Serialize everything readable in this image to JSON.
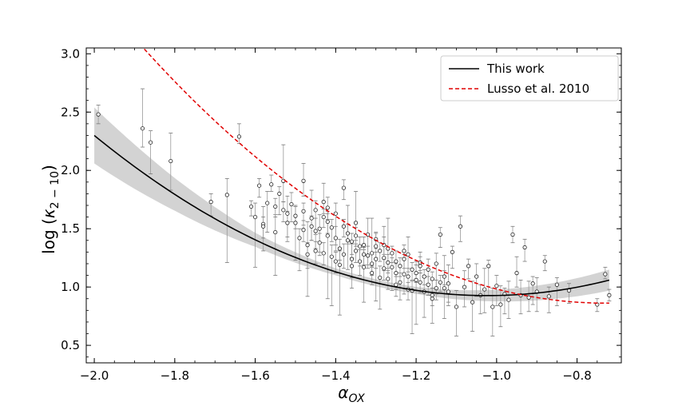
{
  "chart_data": {
    "type": "scatter",
    "title": "",
    "xlabel": "αOX",
    "ylabel": "log (κ2 − 10)",
    "xlabel_parts": {
      "main": "α",
      "sub": "OX"
    },
    "ylabel_parts": {
      "prefix": "log (",
      "kappa": "κ",
      "sub": "2 − 10",
      "suffix": ")"
    },
    "xlim": [
      -2.02,
      -0.69
    ],
    "ylim": [
      0.35,
      3.05
    ],
    "xticks": [
      -2.0,
      -1.8,
      -1.6,
      -1.4,
      -1.2,
      -1.0,
      -0.8
    ],
    "xtick_labels": [
      "−2.0",
      "−1.8",
      "−1.6",
      "−1.4",
      "−1.2",
      "−1.0",
      "−0.8"
    ],
    "yticks": [
      0.5,
      1.0,
      1.5,
      2.0,
      2.5,
      3.0
    ],
    "ytick_labels": [
      "0.5",
      "1.0",
      "1.5",
      "2.0",
      "2.5",
      "3.0"
    ],
    "grid": false,
    "legend": {
      "position": "top-right",
      "entries": [
        {
          "label": "This work",
          "color": "#000000",
          "style": "solid"
        },
        {
          "label": "Lusso et al. 2010",
          "color": "#e00000",
          "style": "dashed"
        }
      ]
    },
    "this_work": {
      "name": "This work",
      "color": "#000000",
      "fit": {
        "type": "quadratic",
        "a": 0.97,
        "b": 0.5,
        "c": 1.44,
        "x0": -0.85
      },
      "band_halfwidth": [
        {
          "x": -2.0,
          "w": 0.24
        },
        {
          "x": -1.8,
          "w": 0.14
        },
        {
          "x": -1.6,
          "w": 0.06
        },
        {
          "x": -1.4,
          "w": 0.03
        },
        {
          "x": -1.2,
          "w": 0.03
        },
        {
          "x": -1.0,
          "w": 0.05
        },
        {
          "x": -0.85,
          "w": 0.07
        },
        {
          "x": -0.72,
          "w": 0.09
        }
      ]
    },
    "lusso_2010": {
      "name": "Lusso et al. 2010",
      "color": "#e00000",
      "fit": {
        "type": "quadratic",
        "a": 0.862,
        "b": 0.0,
        "c": 1.66,
        "x0": -0.73
      }
    },
    "band_color": "#d3d3d3",
    "points": [
      [
        -1.99,
        2.48,
        0.08,
        0.08
      ],
      [
        -1.88,
        2.36,
        0.34,
        0.16
      ],
      [
        -1.86,
        2.24,
        0.1,
        0.27
      ],
      [
        -1.81,
        2.08,
        0.24,
        0.25
      ],
      [
        -1.71,
        1.73,
        0.07,
        0.12
      ],
      [
        -1.67,
        1.79,
        0.14,
        0.58
      ],
      [
        -1.64,
        2.29,
        0.11,
        0.06
      ],
      [
        -1.61,
        1.69,
        0.05,
        0.08
      ],
      [
        -1.6,
        1.6,
        0.12,
        0.43
      ],
      [
        -1.59,
        1.87,
        0.06,
        0.1
      ],
      [
        -1.58,
        1.54,
        0.15,
        0.23
      ],
      [
        -1.57,
        1.72,
        0.1,
        0.25
      ],
      [
        -1.56,
        1.88,
        0.08,
        0.06
      ],
      [
        -1.55,
        1.47,
        0.15,
        0.37
      ],
      [
        -1.54,
        1.8,
        0.06,
        0.18
      ],
      [
        -1.53,
        1.91,
        0.31,
        0.18
      ],
      [
        -1.52,
        1.63,
        0.15,
        0.24
      ],
      [
        -1.51,
        1.71,
        0.1,
        0.15
      ],
      [
        -1.5,
        1.55,
        0.14,
        0.32
      ],
      [
        -1.49,
        1.42,
        0.08,
        0.28
      ],
      [
        -1.48,
        1.91,
        0.15,
        0.13
      ],
      [
        -1.47,
        1.36,
        0.2,
        0.44
      ],
      [
        -1.46,
        1.59,
        0.24,
        0.19
      ],
      [
        -1.45,
        1.66,
        0.08,
        0.21
      ],
      [
        -1.44,
        1.5,
        0.12,
        0.2
      ],
      [
        -1.43,
        1.73,
        0.16,
        0.1
      ],
      [
        -1.42,
        1.44,
        0.21,
        0.54
      ],
      [
        -1.41,
        1.26,
        0.1,
        0.42
      ],
      [
        -1.4,
        1.63,
        0.09,
        0.27
      ],
      [
        -1.39,
        1.19,
        0.12,
        0.43
      ],
      [
        -1.38,
        1.85,
        0.07,
        0.1
      ],
      [
        -1.37,
        1.4,
        0.3,
        0.25
      ],
      [
        -1.36,
        1.24,
        0.13,
        0.25
      ],
      [
        -1.35,
        1.55,
        0.27,
        0.15
      ],
      [
        -1.34,
        1.35,
        0.08,
        0.17
      ],
      [
        -1.33,
        1.17,
        0.15,
        0.3
      ],
      [
        -1.32,
        1.45,
        0.14,
        0.26
      ],
      [
        -1.31,
        1.29,
        0.3,
        0.12
      ],
      [
        -1.3,
        1.35,
        0.11,
        0.47
      ],
      [
        -1.29,
        1.08,
        0.1,
        0.27
      ],
      [
        -1.28,
        1.25,
        0.27,
        0.11
      ],
      [
        -1.27,
        1.33,
        0.26,
        0.17
      ],
      [
        -1.26,
        1.17,
        0.08,
        0.2
      ],
      [
        -1.25,
        1.22,
        0.09,
        0.24
      ],
      [
        -1.24,
        1.04,
        0.08,
        0.15
      ],
      [
        -1.23,
        1.11,
        0.17,
        0.17
      ],
      [
        -1.22,
        1.28,
        0.15,
        0.15
      ],
      [
        -1.21,
        0.97,
        0.08,
        0.37
      ],
      [
        -1.2,
        1.06,
        0.16,
        0.38
      ],
      [
        -1.19,
        1.18,
        0.12,
        0.06
      ],
      [
        -1.18,
        0.96,
        0.12,
        0.22
      ],
      [
        -1.17,
        1.15,
        0.09,
        0.12
      ],
      [
        -1.16,
        0.9,
        0.16,
        0.21
      ],
      [
        -1.15,
        1.2,
        0.09,
        0.26
      ],
      [
        -1.14,
        1.45,
        0.06,
        0.11
      ],
      [
        -1.13,
        0.99,
        0.28,
        0.26
      ],
      [
        -1.12,
        1.03,
        0.16,
        0.19
      ],
      [
        -1.11,
        1.3,
        0.05,
        0.14
      ],
      [
        -1.1,
        0.83,
        0.14,
        0.25
      ],
      [
        -1.09,
        1.52,
        0.09,
        0.13
      ],
      [
        -1.08,
        1.0,
        0.14,
        0.17
      ],
      [
        -1.07,
        1.18,
        0.06,
        0.11
      ],
      [
        -1.06,
        0.87,
        0.18,
        0.25
      ],
      [
        -1.05,
        1.09,
        0.11,
        0.17
      ],
      [
        -1.04,
        0.93,
        0.09,
        0.16
      ],
      [
        -1.03,
        0.98,
        0.18,
        0.2
      ],
      [
        -1.02,
        1.18,
        0.05,
        0.25
      ],
      [
        -1.01,
        0.83,
        0.16,
        0.25
      ],
      [
        -1.0,
        1.01,
        0.09,
        0.17
      ],
      [
        -0.99,
        0.85,
        0.16,
        0.19
      ],
      [
        -0.98,
        0.94,
        0.05,
        0.17
      ],
      [
        -0.97,
        0.89,
        0.16,
        0.16
      ],
      [
        -0.96,
        1.45,
        0.07,
        0.07
      ],
      [
        -0.95,
        1.12,
        0.14,
        0.12
      ],
      [
        -0.94,
        0.93,
        0.13,
        0.16
      ],
      [
        -0.93,
        1.34,
        0.07,
        0.12
      ],
      [
        -0.92,
        0.91,
        0.14,
        0.12
      ],
      [
        -0.91,
        1.03,
        0.06,
        0.18
      ],
      [
        -0.9,
        0.96,
        0.12,
        0.17
      ],
      [
        -0.88,
        1.22,
        0.05,
        0.08
      ],
      [
        -0.87,
        0.92,
        0.08,
        0.14
      ],
      [
        -0.85,
        1.02,
        0.06,
        0.18
      ],
      [
        -0.82,
        0.97,
        0.06,
        0.11
      ],
      [
        -0.75,
        0.85,
        0.05,
        0.06
      ],
      [
        -0.73,
        1.11,
        0.06,
        0.04
      ],
      [
        -0.72,
        0.93,
        0.05,
        0.05
      ],
      [
        -1.58,
        1.52,
        0.08,
        0.1
      ],
      [
        -1.55,
        1.69,
        0.07,
        0.09
      ],
      [
        -1.52,
        1.55,
        0.1,
        0.12
      ],
      [
        -1.5,
        1.61,
        0.09,
        0.11
      ],
      [
        -1.48,
        1.65,
        0.07,
        0.12
      ],
      [
        -1.46,
        1.52,
        0.09,
        0.12
      ],
      [
        -1.45,
        1.48,
        0.11,
        0.15
      ],
      [
        -1.44,
        1.38,
        0.08,
        0.11
      ],
      [
        -1.43,
        1.6,
        0.07,
        0.09
      ],
      [
        -1.42,
        1.68,
        0.09,
        0.1
      ],
      [
        -1.41,
        1.51,
        0.07,
        0.12
      ],
      [
        -1.4,
        1.42,
        0.1,
        0.11
      ],
      [
        -1.39,
        1.33,
        0.08,
        0.1
      ],
      [
        -1.38,
        1.28,
        0.09,
        0.12
      ],
      [
        -1.37,
        1.46,
        0.08,
        0.09
      ],
      [
        -1.36,
        1.39,
        0.07,
        0.11
      ],
      [
        -1.35,
        1.31,
        0.06,
        0.1
      ],
      [
        -1.34,
        1.22,
        0.1,
        0.12
      ],
      [
        -1.33,
        1.36,
        0.07,
        0.09
      ],
      [
        -1.32,
        1.27,
        0.08,
        0.11
      ],
      [
        -1.31,
        1.2,
        0.09,
        0.1
      ],
      [
        -1.3,
        1.24,
        0.06,
        0.08
      ],
      [
        -1.29,
        1.31,
        0.07,
        0.09
      ],
      [
        -1.28,
        1.16,
        0.08,
        0.1
      ],
      [
        -1.27,
        1.21,
        0.07,
        0.09
      ],
      [
        -1.26,
        1.29,
        0.06,
        0.08
      ],
      [
        -1.25,
        1.12,
        0.08,
        0.1
      ],
      [
        -1.24,
        1.18,
        0.07,
        0.09
      ],
      [
        -1.23,
        1.24,
        0.06,
        0.08
      ],
      [
        -1.22,
        1.09,
        0.07,
        0.1
      ],
      [
        -1.21,
        1.15,
        0.06,
        0.09
      ],
      [
        -1.2,
        1.12,
        0.07,
        0.08
      ],
      [
        -1.19,
        1.04,
        0.08,
        0.09
      ],
      [
        -1.18,
        1.09,
        0.06,
        0.07
      ],
      [
        -1.17,
        1.02,
        0.07,
        0.09
      ],
      [
        -1.16,
        1.07,
        0.06,
        0.08
      ],
      [
        -1.15,
        0.99,
        0.07,
        0.1
      ],
      [
        -1.14,
        1.04,
        0.06,
        0.08
      ],
      [
        -1.13,
        1.09,
        0.05,
        0.07
      ],
      [
        -1.12,
        0.96,
        0.07,
        0.09
      ],
      [
        -1.45,
        1.31,
        0.08,
        0.11
      ],
      [
        -1.42,
        1.56,
        0.07,
        0.1
      ],
      [
        -1.38,
        1.52,
        0.06,
        0.09
      ],
      [
        -1.36,
        1.18,
        0.07,
        0.1
      ],
      [
        -1.33,
        1.28,
        0.06,
        0.09
      ],
      [
        -1.3,
        1.41,
        0.06,
        0.08
      ],
      [
        -1.28,
        1.36,
        0.07,
        0.08
      ],
      [
        -1.25,
        1.02,
        0.07,
        0.1
      ],
      [
        -1.22,
        0.98,
        0.06,
        0.09
      ],
      [
        -1.19,
        1.21,
        0.05,
        0.07
      ],
      [
        -1.16,
        0.93,
        0.06,
        0.09
      ],
      [
        -1.4,
        1.22,
        0.08,
        0.1
      ],
      [
        -1.35,
        1.44,
        0.07,
        0.09
      ],
      [
        -1.31,
        1.12,
        0.06,
        0.1
      ],
      [
        -1.27,
        1.07,
        0.07,
        0.09
      ],
      [
        -1.23,
        1.31,
        0.05,
        0.07
      ],
      [
        -1.48,
        1.49,
        0.08,
        0.1
      ],
      [
        -1.53,
        1.66,
        0.07,
        0.1
      ],
      [
        -1.47,
        1.28,
        0.1,
        0.12
      ],
      [
        -1.43,
        1.29,
        0.09,
        0.1
      ]
    ]
  }
}
